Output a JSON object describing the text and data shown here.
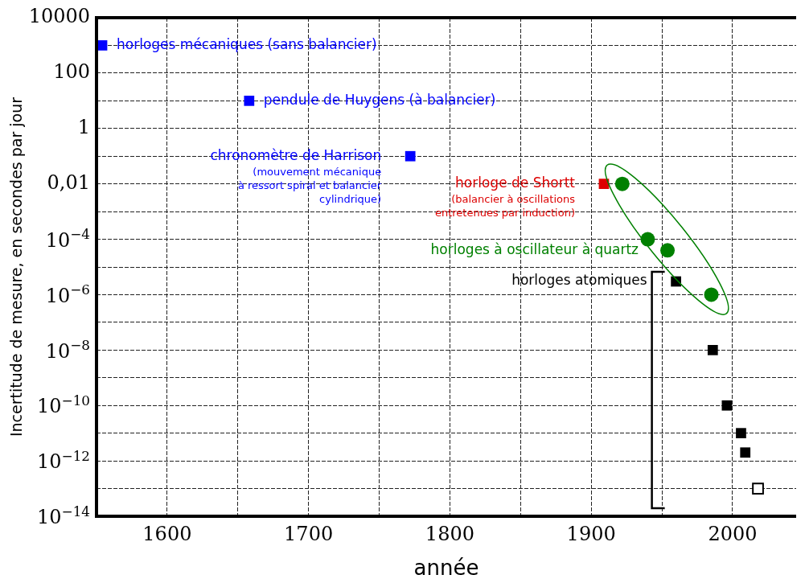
{
  "chart_data": {
    "type": "scatter",
    "xlabel": "année",
    "ylabel": "Incertitude de mesure, en secondes par jour",
    "log": "y",
    "grid": true,
    "legend": false,
    "xlim": [
      1550,
      2045
    ],
    "xticks": [
      {
        "value": 1550,
        "label": null
      },
      1600,
      {
        "value": 1650,
        "label": null
      },
      1700,
      {
        "value": 1750,
        "label": null
      },
      1800,
      {
        "value": 1850,
        "label": null
      },
      1900,
      {
        "value": 1950,
        "label": null
      },
      2000
    ],
    "ylim": [
      1e-14,
      10000
    ],
    "yticks": [
      10000,
      {
        "value": 1000,
        "label": null
      },
      100,
      {
        "value": 10,
        "label": null
      },
      1,
      {
        "value": 0.1,
        "label": null
      },
      {
        "value": 0.01,
        "label": "0,01"
      },
      {
        "value": 0.001,
        "label": null
      },
      {
        "value": 0.0001,
        "label": "10$^{−4}$"
      },
      {
        "value": 1e-05,
        "label": null
      },
      {
        "value": 1e-06,
        "label": "10$^{−6}$"
      },
      {
        "value": 1e-07,
        "label": null
      },
      {
        "value": 1e-08,
        "label": "10$^{−8}$"
      },
      {
        "value": 1e-09,
        "label": null
      },
      {
        "value": 1e-10,
        "label": "10$^{−10}$"
      },
      {
        "value": 1e-11,
        "label": null
      },
      {
        "value": 1e-12,
        "label": "10$^{−12}$"
      },
      {
        "value": 1e-13,
        "label": null
      },
      {
        "value": 1e-14,
        "label": "10$^{−14}$"
      }
    ],
    "series": [
      {
        "color": "#0000ff",
        "marker": "square",
        "x": [
          1554,
          1658,
          1772
        ],
        "values": [
          1000,
          10,
          0.1
        ]
      },
      {
        "color": "#dd0000",
        "marker": "square",
        "x": [
          1909
        ],
        "values": [
          0.01
        ]
      },
      {
        "color": "#008000",
        "marker": "circle",
        "x": [
          1922,
          1940,
          1954,
          1985
        ],
        "values": [
          0.01,
          0.0001,
          4e-05,
          1e-06
        ]
      },
      {
        "color": "#000000",
        "marker": "square",
        "x": [
          1960,
          1986,
          1996,
          2006,
          2009
        ],
        "values": [
          3e-06,
          1e-08,
          1e-10,
          1e-11,
          2e-12
        ]
      },
      {
        "color": "#000000",
        "colors": [
          "#ffffff"
        ],
        "marker": "square",
        "x": [
          2018
        ],
        "values": [
          1e-13
        ]
      }
    ],
    "annotations": [
      {
        "text": "horloges mécaniques (sans balancier)",
        "x": 1554,
        "y": 1000
      },
      {
        "text": "pendule de Huygens (à balancier)",
        "x": 1658,
        "y": 10
      },
      {
        "text": "chronomètre de Harrison",
        "x": 1772,
        "y": 0.1
      },
      "(mouvement mécanique\nà ressort spiral et balancier\ncylindrique)",
      {
        "text": "horloge de Shortt",
        "x": 1909,
        "y": 0.01
      },
      "(balancier à oscillations\nentretenues par induction)",
      {
        "text": "horloges à oscillateur à quartz",
        "x": 1954,
        "y": 4e-05
      },
      {
        "text": "horloges atomiques",
        "x": 1960,
        "y": 3e-06
      }
    ]
  }
}
